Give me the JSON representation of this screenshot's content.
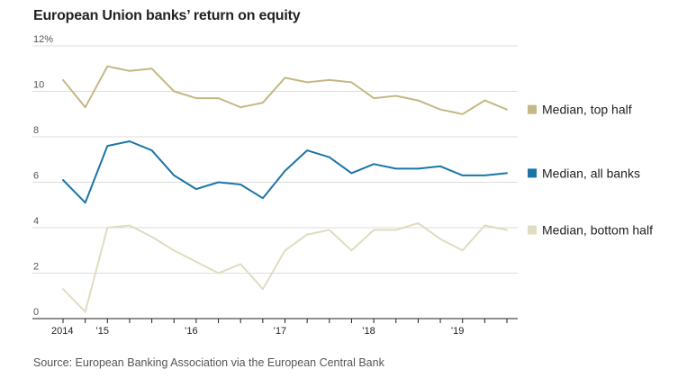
{
  "title": "European Union banks’ return on equity",
  "source": "Source: European Banking Association via the European Central Bank",
  "chart_data": {
    "type": "line",
    "title": "European Union banks’ return on equity",
    "xlabel": "",
    "ylabel": "",
    "ylim": [
      0,
      12
    ],
    "y_ticks": [
      {
        "value": 0,
        "label": "0"
      },
      {
        "value": 2,
        "label": "2"
      },
      {
        "value": 4,
        "label": "4"
      },
      {
        "value": 6,
        "label": "6"
      },
      {
        "value": 8,
        "label": "8"
      },
      {
        "value": 10,
        "label": "10"
      },
      {
        "value": 12,
        "label": "12%"
      }
    ],
    "x": [
      "2014 Q3",
      "2014 Q4",
      "2015 Q1",
      "2015 Q2",
      "2015 Q3",
      "2015 Q4",
      "2016 Q1",
      "2016 Q2",
      "2016 Q3",
      "2016 Q4",
      "2017 Q1",
      "2017 Q2",
      "2017 Q3",
      "2017 Q4",
      "2018 Q1",
      "2018 Q2",
      "2018 Q3",
      "2018 Q4",
      "2019 Q1",
      "2019 Q2",
      "2019 Q3"
    ],
    "x_ticks": [
      {
        "index": 0,
        "label": "2014"
      },
      {
        "index": 2,
        "label": "’15"
      },
      {
        "index": 6,
        "label": "’16"
      },
      {
        "index": 10,
        "label": "’17"
      },
      {
        "index": 14,
        "label": "’18"
      },
      {
        "index": 18,
        "label": "’19"
      }
    ],
    "grid": true,
    "legend": "right",
    "series": [
      {
        "name": "Median, top half",
        "color": "#c4b884",
        "values": [
          10.5,
          9.3,
          11.1,
          10.9,
          11.0,
          10.0,
          9.7,
          9.7,
          9.3,
          9.5,
          10.6,
          10.4,
          10.5,
          10.4,
          9.7,
          9.8,
          9.6,
          9.2,
          9.0,
          9.6,
          9.2
        ]
      },
      {
        "name": "Median, all banks",
        "color": "#1b75a6",
        "values": [
          6.1,
          5.1,
          7.6,
          7.8,
          7.4,
          6.3,
          5.7,
          6.0,
          5.9,
          5.3,
          6.5,
          7.4,
          7.1,
          6.4,
          6.8,
          6.6,
          6.6,
          6.7,
          6.3,
          6.3,
          6.4
        ]
      },
      {
        "name": "Median, bottom half",
        "color": "#e0dcc2",
        "values": [
          1.3,
          0.3,
          4.0,
          4.1,
          3.6,
          3.0,
          2.5,
          2.0,
          2.4,
          1.3,
          3.0,
          3.7,
          3.9,
          3.0,
          3.9,
          3.9,
          4.2,
          3.5,
          3.0,
          4.1,
          3.9
        ]
      }
    ]
  }
}
